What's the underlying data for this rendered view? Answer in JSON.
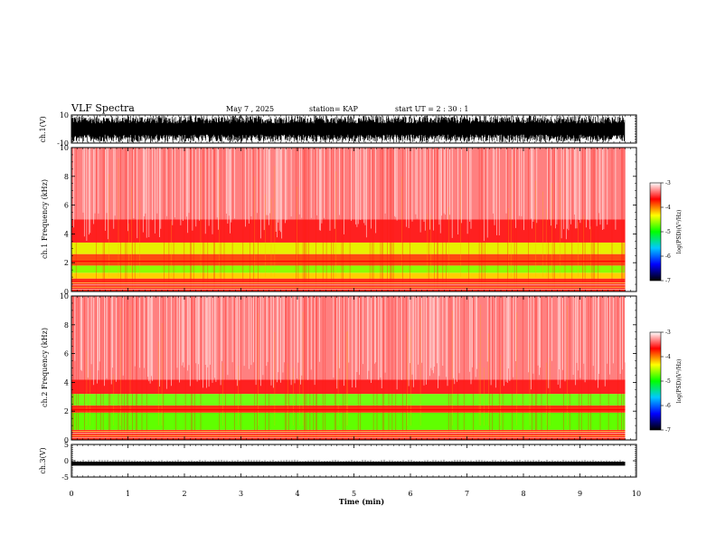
{
  "header": {
    "title": "VLF Spectra",
    "date": "May 7 , 2025",
    "station": "station= KAP",
    "start": "start UT = 2 : 30 : 1"
  },
  "colorbar": {
    "label": "log(PSD)(V²/Hz)",
    "ticks": [
      "-3",
      "-4",
      "-5",
      "-6",
      "-7"
    ],
    "stops": [
      "#000000",
      "#0000ff",
      "#00c8ff",
      "#00ff00",
      "#ffff00",
      "#ff0000",
      "#ffffff"
    ]
  },
  "chart_data": [
    {
      "type": "line",
      "name": "ch1-waveform",
      "ylabel": "ch.1(V)",
      "ylim": [
        -10,
        10
      ],
      "yticks": [
        "10",
        "-10"
      ],
      "xlim": [
        0,
        10
      ],
      "x_filled_until": 9.8,
      "amplitude": "fills most of range, roughly -9 to 9 V"
    },
    {
      "type": "heatmap",
      "name": "ch1-spectrogram",
      "ylabel": "ch.1 Frequency (kHz)",
      "ylim": [
        0,
        10
      ],
      "yticks": [
        "0",
        "2",
        "4",
        "6",
        "8",
        "10"
      ],
      "xlim": [
        0,
        10
      ],
      "x_filled_until": 9.8,
      "bands": [
        {
          "freq_khz": [
            0,
            0.9
          ],
          "color": "#ff2a1a"
        },
        {
          "freq_khz": [
            0.9,
            1.3
          ],
          "color": "#ffd000"
        },
        {
          "freq_khz": [
            1.3,
            1.8
          ],
          "color": "#8cff00"
        },
        {
          "freq_khz": [
            1.8,
            2.6
          ],
          "color": "#ff4a10"
        },
        {
          "freq_khz": [
            2.6,
            3.4
          ],
          "color": "#e8f000"
        },
        {
          "freq_khz": [
            3.4,
            5.0
          ],
          "color": "#ff2020"
        },
        {
          "freq_khz": [
            5.0,
            10.0
          ],
          "color": "#ff8080"
        }
      ]
    },
    {
      "type": "heatmap",
      "name": "ch2-spectrogram",
      "ylabel": "ch.2 Frequency (kHz)",
      "ylim": [
        0,
        10
      ],
      "yticks": [
        "0",
        "2",
        "4",
        "6",
        "8",
        "10"
      ],
      "xlim": [
        0,
        10
      ],
      "x_filled_until": 9.8,
      "bands": [
        {
          "freq_khz": [
            0,
            0.7
          ],
          "color": "#ff2a1a"
        },
        {
          "freq_khz": [
            0.7,
            1.9
          ],
          "color": "#60ff00"
        },
        {
          "freq_khz": [
            1.9,
            2.4
          ],
          "color": "#ff3010"
        },
        {
          "freq_khz": [
            2.4,
            3.2
          ],
          "color": "#70ff10"
        },
        {
          "freq_khz": [
            3.2,
            4.2
          ],
          "color": "#ff2020"
        },
        {
          "freq_khz": [
            4.2,
            10.0
          ],
          "color": "#ff8080"
        }
      ]
    },
    {
      "type": "line",
      "name": "ch3-waveform",
      "ylabel": "ch.3(V)",
      "ylim": [
        -5,
        5
      ],
      "yticks": [
        "5",
        "0",
        "-5"
      ],
      "xlim": [
        0,
        10
      ],
      "x_filled_until": 9.8,
      "level_v": [
        -1.5,
        -0.3
      ]
    }
  ],
  "xaxis": {
    "label": "Time (min)",
    "ticks": [
      "0",
      "1",
      "2",
      "3",
      "4",
      "5",
      "6",
      "7",
      "8",
      "9",
      "10"
    ],
    "range": [
      0,
      10
    ]
  }
}
